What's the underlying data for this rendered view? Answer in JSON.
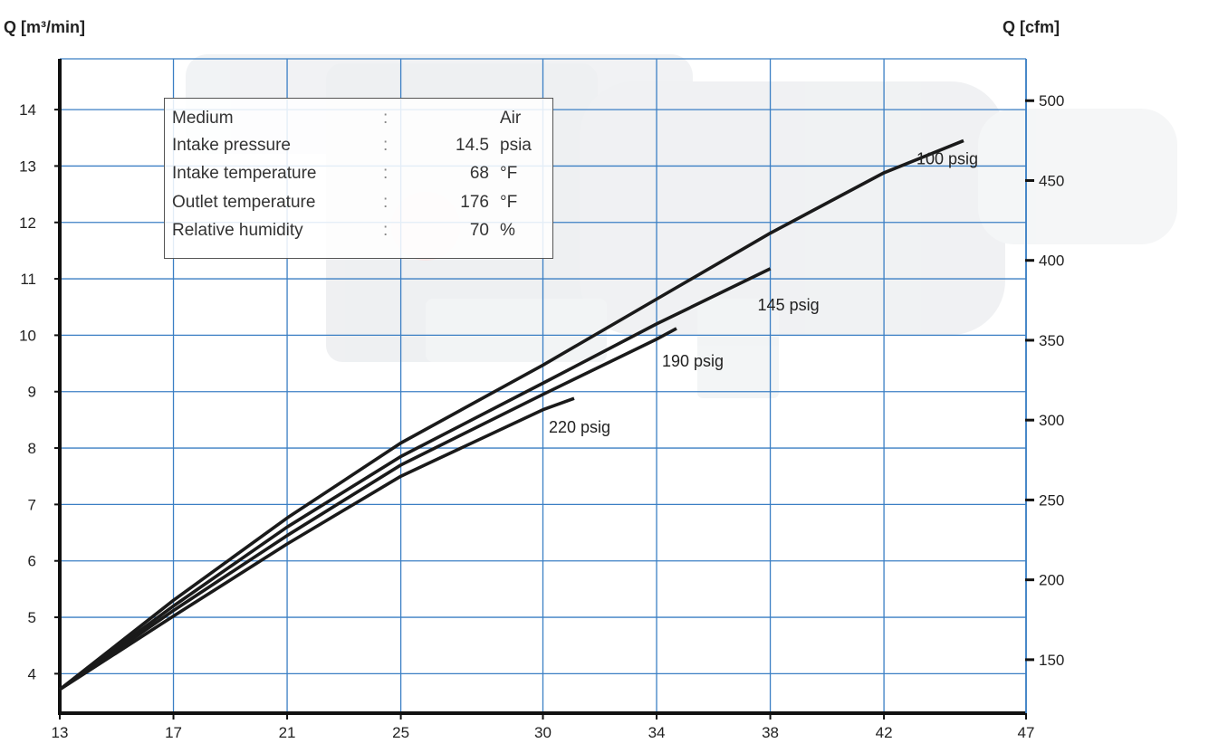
{
  "colors": {
    "grid": "#3b7fc4",
    "axis": "#111111",
    "curve": "#1a1a1a",
    "background": "#ffffff",
    "photo_tint": "#d9dde2"
  },
  "info": {
    "rows": [
      {
        "label": "Medium",
        "sep": ":",
        "value": "",
        "unit": "Air"
      },
      {
        "label": "Intake pressure",
        "sep": ":",
        "value": "14.5",
        "unit": "psia"
      },
      {
        "label": "Intake temperature",
        "sep": ":",
        "value": "68",
        "unit": "°F"
      },
      {
        "label": "Outlet temperature",
        "sep": ":",
        "value": "176",
        "unit": "°F"
      },
      {
        "label": "Relative humidity",
        "sep": ":",
        "value": "70",
        "unit": "%"
      }
    ]
  },
  "chart_data": {
    "type": "line",
    "title": "",
    "xlabel": "",
    "ylabel": "Q [m³/min]",
    "y2label": "Q [cfm]",
    "xlim": [
      13,
      47
    ],
    "ylim": [
      3.3,
      14.9
    ],
    "y2lim": [
      116.5,
      526.2
    ],
    "x_ticks": [
      "13",
      "17",
      "21",
      "25",
      "30",
      "34",
      "38",
      "42",
      "47"
    ],
    "y_ticks": [
      "4",
      "5",
      "6",
      "7",
      "8",
      "9",
      "10",
      "11",
      "12",
      "13",
      "14"
    ],
    "y2_ticks": [
      "150",
      "200",
      "250",
      "300",
      "350",
      "400",
      "450",
      "500"
    ],
    "grid": true,
    "series": [
      {
        "name": "100 psig",
        "x": [
          13,
          17,
          21,
          25,
          30,
          34,
          38,
          42,
          44.8
        ],
        "y": [
          3.72,
          5.3,
          6.76,
          8.09,
          9.47,
          10.64,
          11.81,
          12.88,
          13.45
        ]
      },
      {
        "name": "145 psig",
        "x": [
          13,
          17,
          21,
          25,
          30,
          34,
          38
        ],
        "y": [
          3.72,
          5.2,
          6.6,
          7.85,
          9.15,
          10.2,
          11.18
        ]
      },
      {
        "name": "190 psig",
        "x": [
          13,
          17,
          21,
          25,
          30,
          34,
          34.7
        ],
        "y": [
          3.72,
          5.12,
          6.45,
          7.7,
          8.95,
          9.93,
          10.12
        ]
      },
      {
        "name": "220 psig",
        "x": [
          13,
          17,
          21,
          25,
          30,
          31.1
        ],
        "y": [
          3.72,
          5.02,
          6.3,
          7.5,
          8.68,
          8.88
        ]
      }
    ]
  }
}
